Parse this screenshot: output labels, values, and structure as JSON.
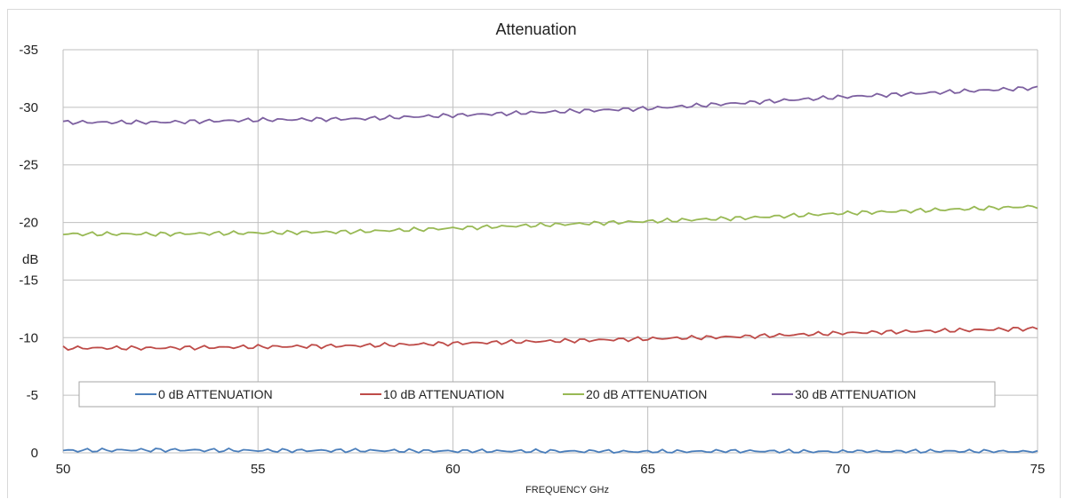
{
  "chart_data": {
    "type": "line",
    "title": "Attenuation",
    "xlabel": "FREQUENCY GHz",
    "ylabel": "dB",
    "xlim": [
      50,
      75
    ],
    "ylim": [
      0,
      -35
    ],
    "y_reversed": true,
    "grid": true,
    "legend_position": "bottom-inside",
    "x_ticks": [
      "50",
      "55",
      "60",
      "65",
      "70",
      "75"
    ],
    "y_ticks": [
      "0",
      "-5",
      "-10",
      "-15",
      "-20",
      "-25",
      "-30",
      "-35"
    ],
    "x": [
      50,
      52.5,
      55,
      57.5,
      60,
      62.5,
      65,
      67.5,
      70,
      72.5,
      75
    ],
    "series": [
      {
        "name": "0 dB ATTENUATION",
        "color": "#4a7ebb",
        "values": [
          -0.2,
          -0.25,
          -0.2,
          -0.2,
          -0.15,
          -0.15,
          -0.1,
          -0.15,
          -0.1,
          -0.15,
          -0.1
        ]
      },
      {
        "name": "10 dB ATTENUATION",
        "color": "#be4b48",
        "values": [
          -9.1,
          -9.1,
          -9.2,
          -9.3,
          -9.5,
          -9.7,
          -9.9,
          -10.1,
          -10.4,
          -10.6,
          -10.8
        ]
      },
      {
        "name": "20 dB ATTENUATION",
        "color": "#98b954",
        "values": [
          -19.0,
          -19.0,
          -19.1,
          -19.2,
          -19.5,
          -19.8,
          -20.1,
          -20.4,
          -20.8,
          -21.1,
          -21.4
        ]
      },
      {
        "name": "30 dB ATTENUATION",
        "color": "#7d60a0",
        "values": [
          -28.7,
          -28.7,
          -28.9,
          -29.0,
          -29.3,
          -29.6,
          -29.9,
          -30.4,
          -30.9,
          -31.3,
          -31.7
        ]
      }
    ]
  }
}
